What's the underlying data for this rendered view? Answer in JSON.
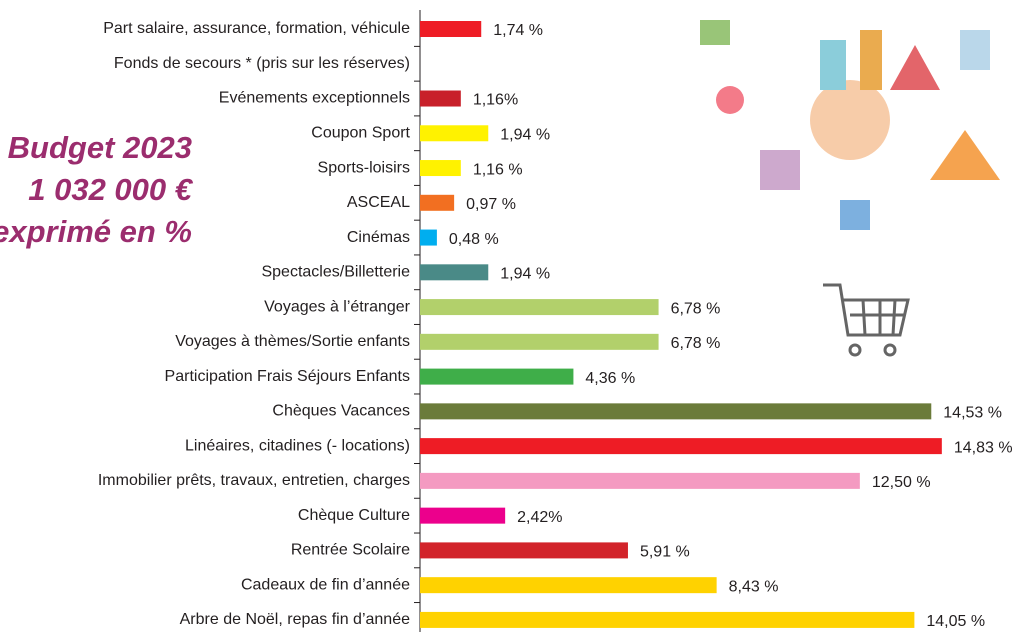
{
  "chart_data": {
    "type": "bar",
    "orientation": "horizontal",
    "title": "Budget 2023",
    "subtitle": "1 032 000 €",
    "annotation": "exprimé en %",
    "categories": [
      "Part salaire, assurance, formation, véhicule",
      "Fonds de secours * (pris sur les réserves)",
      "Evénements exceptionnels",
      "Coupon Sport",
      "Sports-loisirs",
      "ASCEAL",
      "Cinémas",
      "Spectacles/Billetterie",
      "Voyages à l’étranger",
      "Voyages à thèmes/Sortie enfants",
      "Participation Frais Séjours Enfants",
      "Chèques Vacances",
      "Linéaires, citadines (- locations)",
      "Immobilier prêts, travaux, entretien, charges",
      "Chèque Culture",
      "Rentrée Scolaire",
      "Cadeaux de fin d’année",
      "Arbre de Noël, repas fin d’année"
    ],
    "values": [
      1.74,
      null,
      1.16,
      1.94,
      1.16,
      0.97,
      0.48,
      1.94,
      6.78,
      6.78,
      4.36,
      14.53,
      14.83,
      12.5,
      2.42,
      5.91,
      8.43,
      14.05
    ],
    "value_labels": [
      "1,74 %",
      null,
      "1,16%",
      "1,94 %",
      "1,16 %",
      "0,97 %",
      "0,48 %",
      "1,94 %",
      "6,78 %",
      "6,78 %",
      "4,36 %",
      "14,53 %",
      "14,83 %",
      "12,50 %",
      "2,42%",
      "5,91 %",
      "8,43 %",
      "14,05 %"
    ],
    "colors": [
      "#ee1c25",
      null,
      "#c8202a",
      "#fff200",
      "#fff200",
      "#f26f21",
      "#00aeef",
      "#4a8a87",
      "#b2d06b",
      "#b2d06b",
      "#3fae49",
      "#6b7b3a",
      "#ee1c25",
      "#f49ac1",
      "#ec008c",
      "#d2232a",
      "#ffd200",
      "#ffd200"
    ],
    "xlim": [
      0,
      16
    ]
  }
}
